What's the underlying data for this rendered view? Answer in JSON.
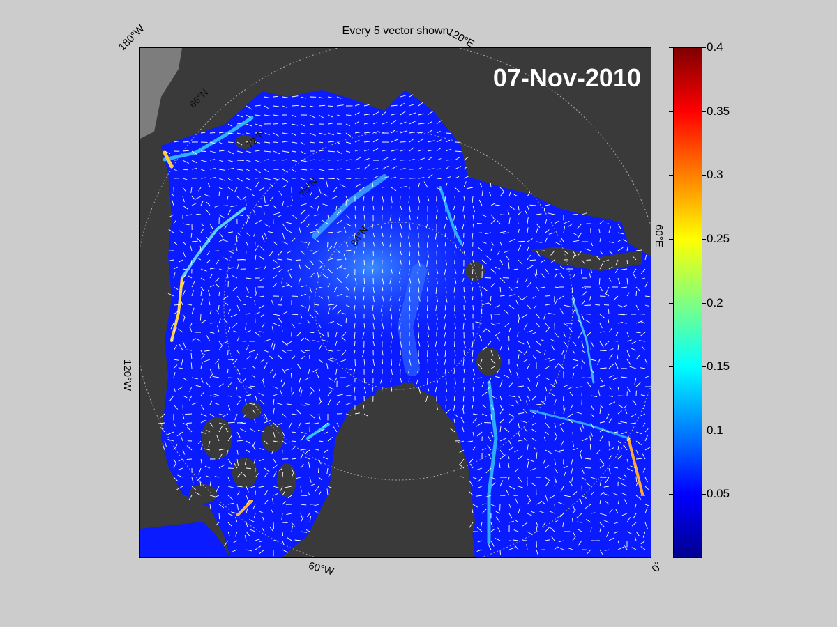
{
  "title": "Every 5 vector shown",
  "date_label": "07-Nov-2010",
  "map": {
    "longitude_labels": {
      "top_left": "180°W",
      "top_right": "120°E",
      "right": "60°E",
      "bottom_right": "0°",
      "bottom": "60°W",
      "left": "120°W"
    },
    "latitude_labels": [
      "66°N",
      "72°N",
      "78°N",
      "84°N"
    ],
    "colors": {
      "land": "#3a3a3a",
      "open_ocean": "#7d7d7d",
      "coast_ice": "#8a8a8a",
      "ice_base": "#0a1cff",
      "ice_mid": "#2b6cff",
      "vectors": "#ffffff"
    }
  },
  "colorbar": {
    "min": 0,
    "max": 0.4,
    "tick_labels": [
      "0.4",
      "0.35",
      "0.3",
      "0.25",
      "0.2",
      "0.15",
      "0.1",
      "0.05"
    ],
    "tick_values": [
      0.4,
      0.35,
      0.3,
      0.25,
      0.2,
      0.15,
      0.1,
      0.05
    ],
    "colormap": "jet"
  }
}
